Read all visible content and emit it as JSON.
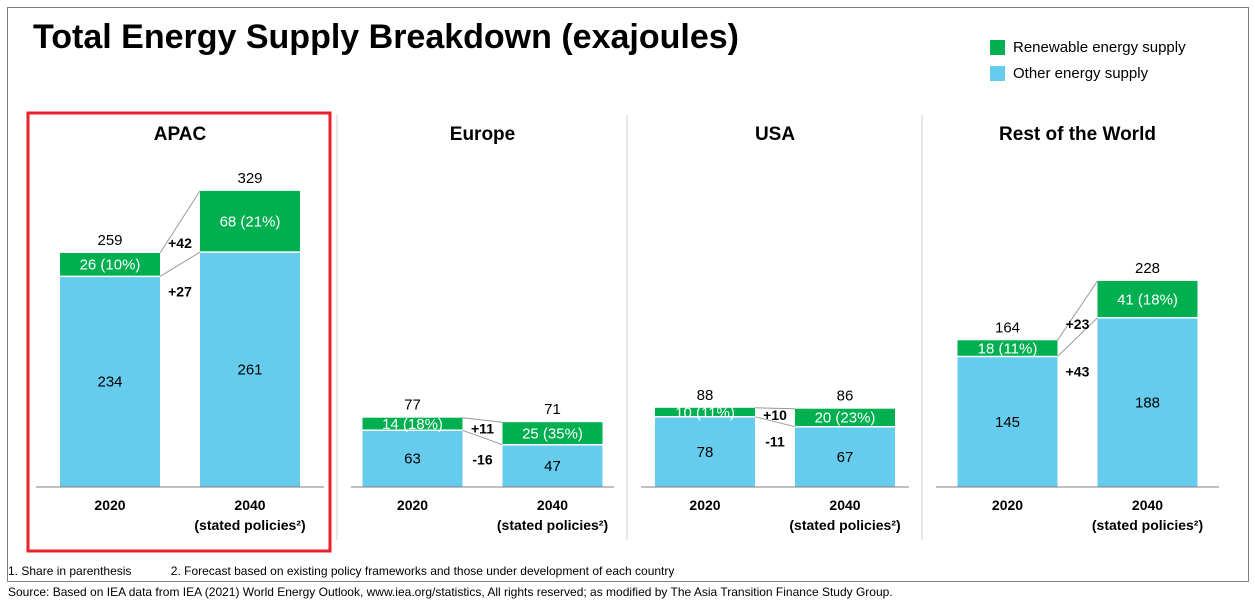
{
  "title": "Total Energy Supply Breakdown (exajoules)",
  "legend": [
    {
      "label": "Renewable energy supply",
      "color": "#00B050"
    },
    {
      "label": "Other energy supply",
      "color": "#66CCEE"
    }
  ],
  "footnotes": {
    "note1": "1. Share in parenthesis",
    "note2": "2. Forecast based on existing policy frameworks and those under development of each country",
    "source": "Source: Based on IEA data from IEA (2021) World Energy Outlook, www.iea.org/statistics, All rights reserved; as modified by The Asia Transition Finance Study Group."
  },
  "highlight_color": "#E8212A",
  "chart_data": [
    {
      "type": "bar",
      "stacked": true,
      "title": "APAC",
      "highlighted": true,
      "categories": [
        "2020",
        "2040"
      ],
      "category_sublabels": [
        "",
        "(stated policies²)"
      ],
      "series": [
        {
          "name": "Other energy supply",
          "values": [
            234,
            261
          ],
          "labels": [
            "234",
            "261"
          ]
        },
        {
          "name": "Renewable energy supply",
          "values": [
            26,
            68
          ],
          "labels": [
            "26 (10%)",
            "68 (21%)"
          ]
        }
      ],
      "totals": [
        "259",
        "329"
      ],
      "renewable_change": "+42",
      "other_change": "+27"
    },
    {
      "type": "bar",
      "stacked": true,
      "title": "Europe",
      "highlighted": false,
      "categories": [
        "2020",
        "2040"
      ],
      "category_sublabels": [
        "",
        "(stated policies²)"
      ],
      "series": [
        {
          "name": "Other energy supply",
          "values": [
            63,
            47
          ],
          "labels": [
            "63",
            "47"
          ]
        },
        {
          "name": "Renewable energy supply",
          "values": [
            14,
            25
          ],
          "labels": [
            "14 (18%)",
            "25 (35%)"
          ]
        }
      ],
      "totals": [
        "77",
        "71"
      ],
      "renewable_change": "+11",
      "other_change": "-16"
    },
    {
      "type": "bar",
      "stacked": true,
      "title": "USA",
      "highlighted": false,
      "categories": [
        "2020",
        "2040"
      ],
      "category_sublabels": [
        "",
        "(stated policies²)"
      ],
      "series": [
        {
          "name": "Other energy supply",
          "values": [
            78,
            67
          ],
          "labels": [
            "78",
            "67"
          ]
        },
        {
          "name": "Renewable energy supply",
          "values": [
            10,
            20
          ],
          "labels": [
            "10 (11%)",
            "20 (23%)"
          ]
        }
      ],
      "totals": [
        "88",
        "86"
      ],
      "renewable_change": "+10",
      "other_change": "-11"
    },
    {
      "type": "bar",
      "stacked": true,
      "title": "Rest of the World",
      "highlighted": false,
      "categories": [
        "2020",
        "2040"
      ],
      "category_sublabels": [
        "",
        "(stated policies²)"
      ],
      "series": [
        {
          "name": "Other energy supply",
          "values": [
            145,
            188
          ],
          "labels": [
            "145",
            "188"
          ]
        },
        {
          "name": "Renewable energy supply",
          "values": [
            18,
            41
          ],
          "labels": [
            "18 (11%)",
            "41 (18%)"
          ]
        }
      ],
      "totals": [
        "164",
        "228"
      ],
      "renewable_change": "+23",
      "other_change": "+43"
    }
  ]
}
